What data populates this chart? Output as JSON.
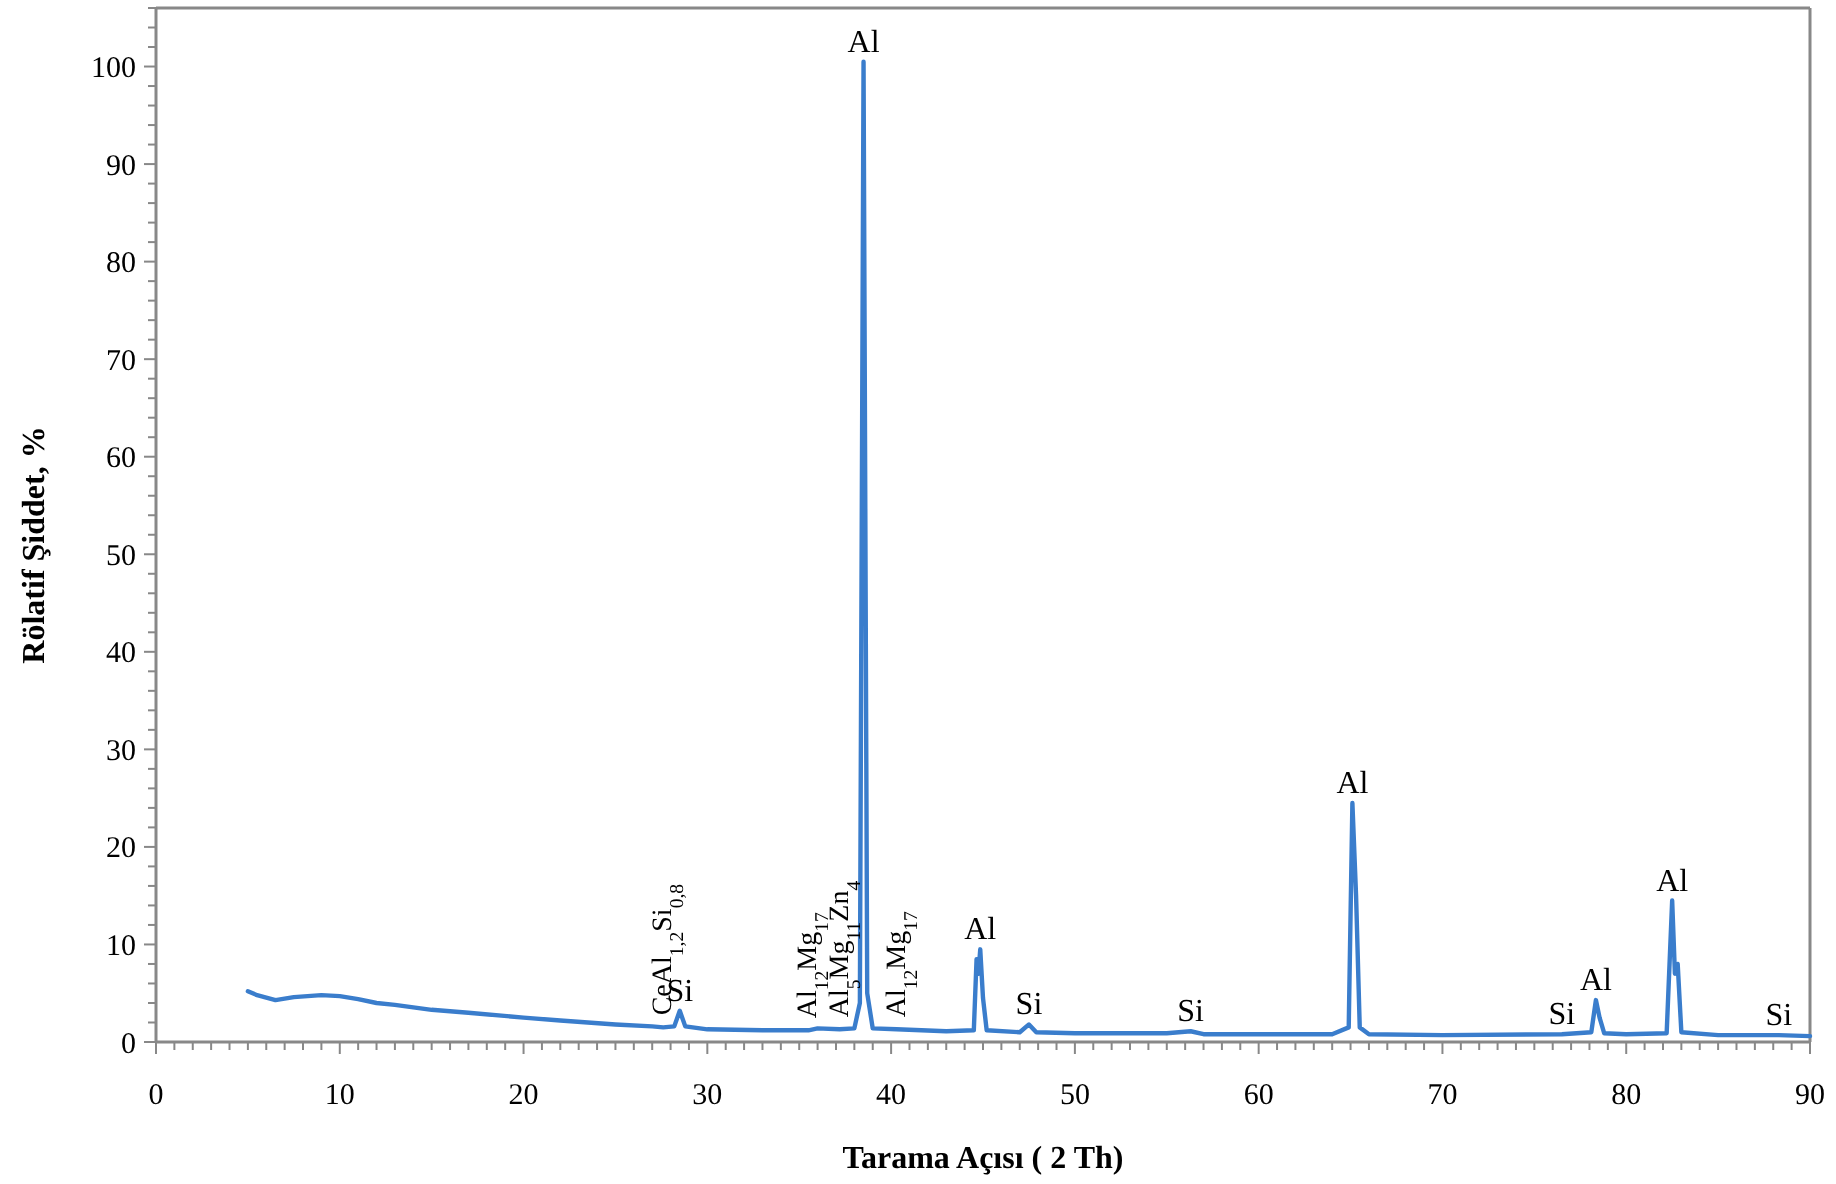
{
  "chart_data": {
    "type": "line",
    "xlabel": "Tarama Açısı ( 2 Th)",
    "ylabel": "Rölatif Şiddet, %",
    "xlim": [
      0,
      90
    ],
    "ylim": [
      0,
      106
    ],
    "xticks": [
      0,
      {
        "value": 1,
        "label": null
      },
      {
        "value": 2,
        "label": null
      },
      {
        "value": 3,
        "label": null
      },
      {
        "value": 4,
        "label": null
      },
      {
        "value": 5,
        "label": null
      },
      {
        "value": 6,
        "label": null
      },
      {
        "value": 7,
        "label": null
      },
      {
        "value": 8,
        "label": null
      },
      {
        "value": 9,
        "label": null
      },
      10,
      {
        "value": 11,
        "label": null
      },
      {
        "value": 12,
        "label": null
      },
      {
        "value": 13,
        "label": null
      },
      {
        "value": 14,
        "label": null
      },
      {
        "value": 15,
        "label": null
      },
      {
        "value": 16,
        "label": null
      },
      {
        "value": 17,
        "label": null
      },
      {
        "value": 18,
        "label": null
      },
      {
        "value": 19,
        "label": null
      },
      20,
      {
        "value": 21,
        "label": null
      },
      {
        "value": 22,
        "label": null
      },
      {
        "value": 23,
        "label": null
      },
      {
        "value": 24,
        "label": null
      },
      {
        "value": 25,
        "label": null
      },
      {
        "value": 26,
        "label": null
      },
      {
        "value": 27,
        "label": null
      },
      {
        "value": 28,
        "label": null
      },
      {
        "value": 29,
        "label": null
      },
      30,
      {
        "value": 31,
        "label": null
      },
      {
        "value": 32,
        "label": null
      },
      {
        "value": 33,
        "label": null
      },
      {
        "value": 34,
        "label": null
      },
      {
        "value": 35,
        "label": null
      },
      {
        "value": 36,
        "label": null
      },
      {
        "value": 37,
        "label": null
      },
      {
        "value": 38,
        "label": null
      },
      {
        "value": 39,
        "label": null
      },
      40,
      {
        "value": 41,
        "label": null
      },
      {
        "value": 42,
        "label": null
      },
      {
        "value": 43,
        "label": null
      },
      {
        "value": 44,
        "label": null
      },
      {
        "value": 45,
        "label": null
      },
      {
        "value": 46,
        "label": null
      },
      {
        "value": 47,
        "label": null
      },
      {
        "value": 48,
        "label": null
      },
      {
        "value": 49,
        "label": null
      },
      50,
      {
        "value": 51,
        "label": null
      },
      {
        "value": 52,
        "label": null
      },
      {
        "value": 53,
        "label": null
      },
      {
        "value": 54,
        "label": null
      },
      {
        "value": 55,
        "label": null
      },
      {
        "value": 56,
        "label": null
      },
      {
        "value": 57,
        "label": null
      },
      {
        "value": 58,
        "label": null
      },
      {
        "value": 59,
        "label": null
      },
      60,
      {
        "value": 61,
        "label": null
      },
      {
        "value": 62,
        "label": null
      },
      {
        "value": 63,
        "label": null
      },
      {
        "value": 64,
        "label": null
      },
      {
        "value": 65,
        "label": null
      },
      {
        "value": 66,
        "label": null
      },
      {
        "value": 67,
        "label": null
      },
      {
        "value": 68,
        "label": null
      },
      {
        "value": 69,
        "label": null
      },
      70,
      {
        "value": 71,
        "label": null
      },
      {
        "value": 72,
        "label": null
      },
      {
        "value": 73,
        "label": null
      },
      {
        "value": 74,
        "label": null
      },
      {
        "value": 75,
        "label": null
      },
      {
        "value": 76,
        "label": null
      },
      {
        "value": 77,
        "label": null
      },
      {
        "value": 78,
        "label": null
      },
      {
        "value": 79,
        "label": null
      },
      80,
      {
        "value": 81,
        "label": null
      },
      {
        "value": 82,
        "label": null
      },
      {
        "value": 83,
        "label": null
      },
      {
        "value": 84,
        "label": null
      },
      {
        "value": 85,
        "label": null
      },
      {
        "value": 86,
        "label": null
      },
      {
        "value": 87,
        "label": null
      },
      {
        "value": 88,
        "label": null
      },
      {
        "value": 89,
        "label": null
      },
      90
    ],
    "yticks": [
      0,
      {
        "value": 2,
        "label": null
      },
      {
        "value": 4,
        "label": null
      },
      {
        "value": 6,
        "label": null
      },
      {
        "value": 8,
        "label": null
      },
      10,
      {
        "value": 12,
        "label": null
      },
      {
        "value": 14,
        "label": null
      },
      {
        "value": 16,
        "label": null
      },
      {
        "value": 18,
        "label": null
      },
      20,
      {
        "value": 22,
        "label": null
      },
      {
        "value": 24,
        "label": null
      },
      {
        "value": 26,
        "label": null
      },
      {
        "value": 28,
        "label": null
      },
      30,
      {
        "value": 32,
        "label": null
      },
      {
        "value": 34,
        "label": null
      },
      {
        "value": 36,
        "label": null
      },
      {
        "value": 38,
        "label": null
      },
      40,
      {
        "value": 42,
        "label": null
      },
      {
        "value": 44,
        "label": null
      },
      {
        "value": 46,
        "label": null
      },
      {
        "value": 48,
        "label": null
      },
      50,
      {
        "value": 52,
        "label": null
      },
      {
        "value": 54,
        "label": null
      },
      {
        "value": 56,
        "label": null
      },
      {
        "value": 58,
        "label": null
      },
      60,
      {
        "value": 62,
        "label": null
      },
      {
        "value": 64,
        "label": null
      },
      {
        "value": 66,
        "label": null
      },
      {
        "value": 68,
        "label": null
      },
      70,
      {
        "value": 72,
        "label": null
      },
      {
        "value": 74,
        "label": null
      },
      {
        "value": 76,
        "label": null
      },
      {
        "value": 78,
        "label": null
      },
      80,
      {
        "value": 82,
        "label": null
      },
      {
        "value": 84,
        "label": null
      },
      {
        "value": 86,
        "label": null
      },
      {
        "value": 88,
        "label": null
      },
      90,
      {
        "value": 92,
        "label": null
      },
      {
        "value": 94,
        "label": null
      },
      {
        "value": 96,
        "label": null
      },
      {
        "value": 98,
        "label": null
      },
      100,
      {
        "value": 102,
        "label": null
      },
      {
        "value": 104,
        "label": null
      },
      {
        "value": 106,
        "label": null
      }
    ],
    "grid": false,
    "line_style": "solid",
    "series": [
      {
        "color": "#3a7dcc",
        "x": [
          5,
          5.5,
          6.5,
          7.5,
          9,
          10,
          11,
          12,
          13,
          15,
          17,
          20,
          22,
          25,
          27,
          27.6,
          28.2,
          28.5,
          28.8,
          30,
          33,
          35.5,
          36,
          37.2,
          38,
          38.3,
          38.5,
          38.7,
          39,
          40.3,
          43,
          44.5,
          44.65,
          44.75,
          44.85,
          45,
          45.2,
          47,
          47.5,
          47.9,
          50,
          55,
          56.3,
          57,
          60,
          64,
          64.9,
          65.1,
          65.3,
          65.5,
          66,
          70,
          76.5,
          78.1,
          78.35,
          78.55,
          78.8,
          80,
          82.2,
          82.5,
          82.65,
          82.8,
          83,
          85,
          88.3,
          90
        ],
        "values": [
          5.2,
          4.8,
          4.3,
          4.6,
          4.8,
          4.7,
          4.4,
          4.0,
          3.8,
          3.3,
          3.0,
          2.5,
          2.2,
          1.8,
          1.6,
          1.5,
          1.6,
          3.2,
          1.6,
          1.3,
          1.2,
          1.2,
          1.4,
          1.3,
          1.4,
          4,
          100.5,
          5,
          1.4,
          1.3,
          1.1,
          1.2,
          8.5,
          7,
          9.5,
          4.5,
          1.2,
          1.0,
          1.8,
          1.0,
          0.9,
          0.9,
          1.1,
          0.8,
          0.8,
          0.8,
          1.5,
          24.5,
          15,
          1.5,
          0.8,
          0.7,
          0.8,
          1,
          4.3,
          2.5,
          0.9,
          0.8,
          0.9,
          14.5,
          7,
          8,
          1,
          0.7,
          0.7,
          0.6
        ]
      }
    ],
    "annotations": [
      {
        "text": "CeAl$_{1,2}$Si$_{0,8}$",
        "x": 27.6,
        "y": 1.5
      },
      {
        "text": "Si",
        "x": 28.5,
        "y": 3.2
      },
      {
        "text": "Al$_{12}$Mg$_{17}$",
        "x": 35.5,
        "y": 1.2
      },
      {
        "text": "Al$_{5}$Mg$_{11}$Zn$_{4}$",
        "x": 37.2,
        "y": 1.3
      },
      {
        "text": "Al$_{12}$Mg$_{17}$",
        "x": 40.3,
        "y": 1.3
      },
      {
        "text": "Al",
        "x": 38.5,
        "y": 100.5
      },
      {
        "text": "Al",
        "x": 44.85,
        "y": 9.5
      },
      {
        "text": "Si",
        "x": 47.5,
        "y": 1.8
      },
      {
        "text": "Si",
        "x": 56.3,
        "y": 1.1
      },
      {
        "text": "Al",
        "x": 65.1,
        "y": 24.5
      },
      {
        "text": "Si",
        "x": 76.5,
        "y": 0.8
      },
      {
        "text": "Al",
        "x": 78.35,
        "y": 4.3
      },
      {
        "text": "Al",
        "x": 82.5,
        "y": 14.5
      },
      {
        "text": "Si",
        "x": 88.3,
        "y": 0.7
      }
    ]
  }
}
